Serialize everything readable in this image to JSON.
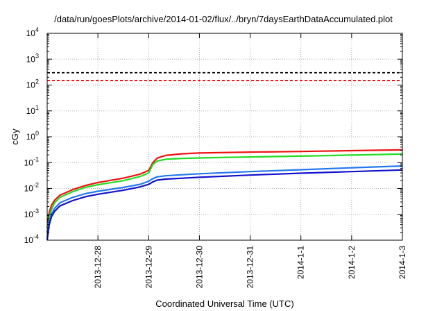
{
  "chart_data": {
    "type": "line",
    "title": "/data/run/goesPlots/archive/2014-01-02/flux/../bryn/7daysEarthDataAccumulated.plot",
    "xlabel": "Coordinated Universal Time (UTC)",
    "ylabel": "cGy",
    "yscale": "log",
    "ylim": [
      0.0001,
      10000
    ],
    "xlim": [
      "2013-12-27T00:00",
      "2014-01-03T00:00"
    ],
    "grid": true,
    "x_ticks": [
      "2013-12-28",
      "2013-12-29",
      "2013-12-30",
      "2013-12-31",
      "2014-1-1",
      "2014-1-2",
      "2014-1-3"
    ],
    "y_ticks": [
      {
        "base": "10",
        "exp": "-4",
        "value": 0.0001
      },
      {
        "base": "10",
        "exp": "-3",
        "value": 0.001
      },
      {
        "base": "10",
        "exp": "-2",
        "value": 0.01
      },
      {
        "base": "10",
        "exp": "-1",
        "value": 0.1
      },
      {
        "base": "10",
        "exp": "0",
        "value": 1
      },
      {
        "base": "10",
        "exp": "1",
        "value": 10
      },
      {
        "base": "10",
        "exp": "2",
        "value": 100
      },
      {
        "base": "10",
        "exp": "3",
        "value": 1000
      },
      {
        "base": "10",
        "exp": "4",
        "value": 10000
      }
    ],
    "thresholds": [
      {
        "value": 300,
        "color": "#000000",
        "style": "dashed"
      },
      {
        "value": 150,
        "color": "#ff0000",
        "style": "dashed"
      }
    ],
    "series": [
      {
        "color": "#ee1111",
        "points": [
          [
            "2013-12-27T00:00",
            0.0003
          ],
          [
            "2013-12-27T01:00",
            0.0012
          ],
          [
            "2013-12-27T02:00",
            0.0022
          ],
          [
            "2013-12-27T03:30",
            0.0035
          ],
          [
            "2013-12-27T06:00",
            0.0055
          ],
          [
            "2013-12-27T12:00",
            0.009
          ],
          [
            "2013-12-27T18:00",
            0.013
          ],
          [
            "2013-12-28T00:00",
            0.017
          ],
          [
            "2013-12-28T12:00",
            0.025
          ],
          [
            "2013-12-28T20:00",
            0.036
          ],
          [
            "2013-12-29T00:00",
            0.05
          ],
          [
            "2013-12-29T02:00",
            0.1
          ],
          [
            "2013-12-29T04:00",
            0.15
          ],
          [
            "2013-12-29T08:00",
            0.19
          ],
          [
            "2013-12-29T16:00",
            0.22
          ],
          [
            "2013-12-30T00:00",
            0.235
          ],
          [
            "2013-12-31T00:00",
            0.255
          ],
          [
            "2014-01-01T00:00",
            0.27
          ],
          [
            "2014-01-02T00:00",
            0.29
          ],
          [
            "2014-01-03T00:00",
            0.31
          ]
        ]
      },
      {
        "color": "#22dd22",
        "points": [
          [
            "2013-12-27T00:00",
            0.0002
          ],
          [
            "2013-12-27T01:00",
            0.0008
          ],
          [
            "2013-12-27T02:00",
            0.0015
          ],
          [
            "2013-12-27T03:30",
            0.0028
          ],
          [
            "2013-12-27T06:00",
            0.0045
          ],
          [
            "2013-12-27T12:00",
            0.0075
          ],
          [
            "2013-12-27T18:00",
            0.011
          ],
          [
            "2013-12-28T00:00",
            0.014
          ],
          [
            "2013-12-28T12:00",
            0.02
          ],
          [
            "2013-12-28T20:00",
            0.029
          ],
          [
            "2013-12-29T00:00",
            0.04
          ],
          [
            "2013-12-29T02:00",
            0.085
          ],
          [
            "2013-12-29T04:00",
            0.115
          ],
          [
            "2013-12-29T08:00",
            0.135
          ],
          [
            "2013-12-29T16:00",
            0.145
          ],
          [
            "2013-12-30T00:00",
            0.152
          ],
          [
            "2013-12-31T00:00",
            0.165
          ],
          [
            "2014-01-01T00:00",
            0.178
          ],
          [
            "2014-01-02T00:00",
            0.195
          ],
          [
            "2014-01-03T00:00",
            0.215
          ]
        ]
      },
      {
        "color": "#2277ee",
        "points": [
          [
            "2013-12-27T00:00",
            0.00012
          ],
          [
            "2013-12-27T01:00",
            0.0005
          ],
          [
            "2013-12-27T02:00",
            0.001
          ],
          [
            "2013-12-27T03:30",
            0.0017
          ],
          [
            "2013-12-27T06:00",
            0.0028
          ],
          [
            "2013-12-27T12:00",
            0.0045
          ],
          [
            "2013-12-27T18:00",
            0.0063
          ],
          [
            "2013-12-28T00:00",
            0.0078
          ],
          [
            "2013-12-28T12:00",
            0.011
          ],
          [
            "2013-12-28T20:00",
            0.0145
          ],
          [
            "2013-12-29T00:00",
            0.019
          ],
          [
            "2013-12-29T02:00",
            0.024
          ],
          [
            "2013-12-29T04:00",
            0.028
          ],
          [
            "2013-12-29T08:00",
            0.031
          ],
          [
            "2013-12-29T16:00",
            0.034
          ],
          [
            "2013-12-30T00:00",
            0.037
          ],
          [
            "2013-12-31T00:00",
            0.045
          ],
          [
            "2014-01-01T00:00",
            0.053
          ],
          [
            "2014-01-02T00:00",
            0.063
          ],
          [
            "2014-01-03T00:00",
            0.074
          ]
        ]
      },
      {
        "color": "#1111cc",
        "points": [
          [
            "2013-12-27T00:00",
            0.0001
          ],
          [
            "2013-12-27T01:00",
            0.0004
          ],
          [
            "2013-12-27T02:00",
            0.0008
          ],
          [
            "2013-12-27T03:30",
            0.0013
          ],
          [
            "2013-12-27T06:00",
            0.0021
          ],
          [
            "2013-12-27T12:00",
            0.0034
          ],
          [
            "2013-12-27T18:00",
            0.0048
          ],
          [
            "2013-12-28T00:00",
            0.006
          ],
          [
            "2013-12-28T12:00",
            0.0085
          ],
          [
            "2013-12-28T20:00",
            0.0115
          ],
          [
            "2013-12-29T00:00",
            0.0145
          ],
          [
            "2013-12-29T02:00",
            0.018
          ],
          [
            "2013-12-29T04:00",
            0.021
          ],
          [
            "2013-12-29T08:00",
            0.023
          ],
          [
            "2013-12-29T16:00",
            0.025
          ],
          [
            "2013-12-30T00:00",
            0.027
          ],
          [
            "2013-12-31T00:00",
            0.033
          ],
          [
            "2014-01-01T00:00",
            0.039
          ],
          [
            "2014-01-02T00:00",
            0.045
          ],
          [
            "2014-01-03T00:00",
            0.052
          ]
        ]
      }
    ]
  }
}
